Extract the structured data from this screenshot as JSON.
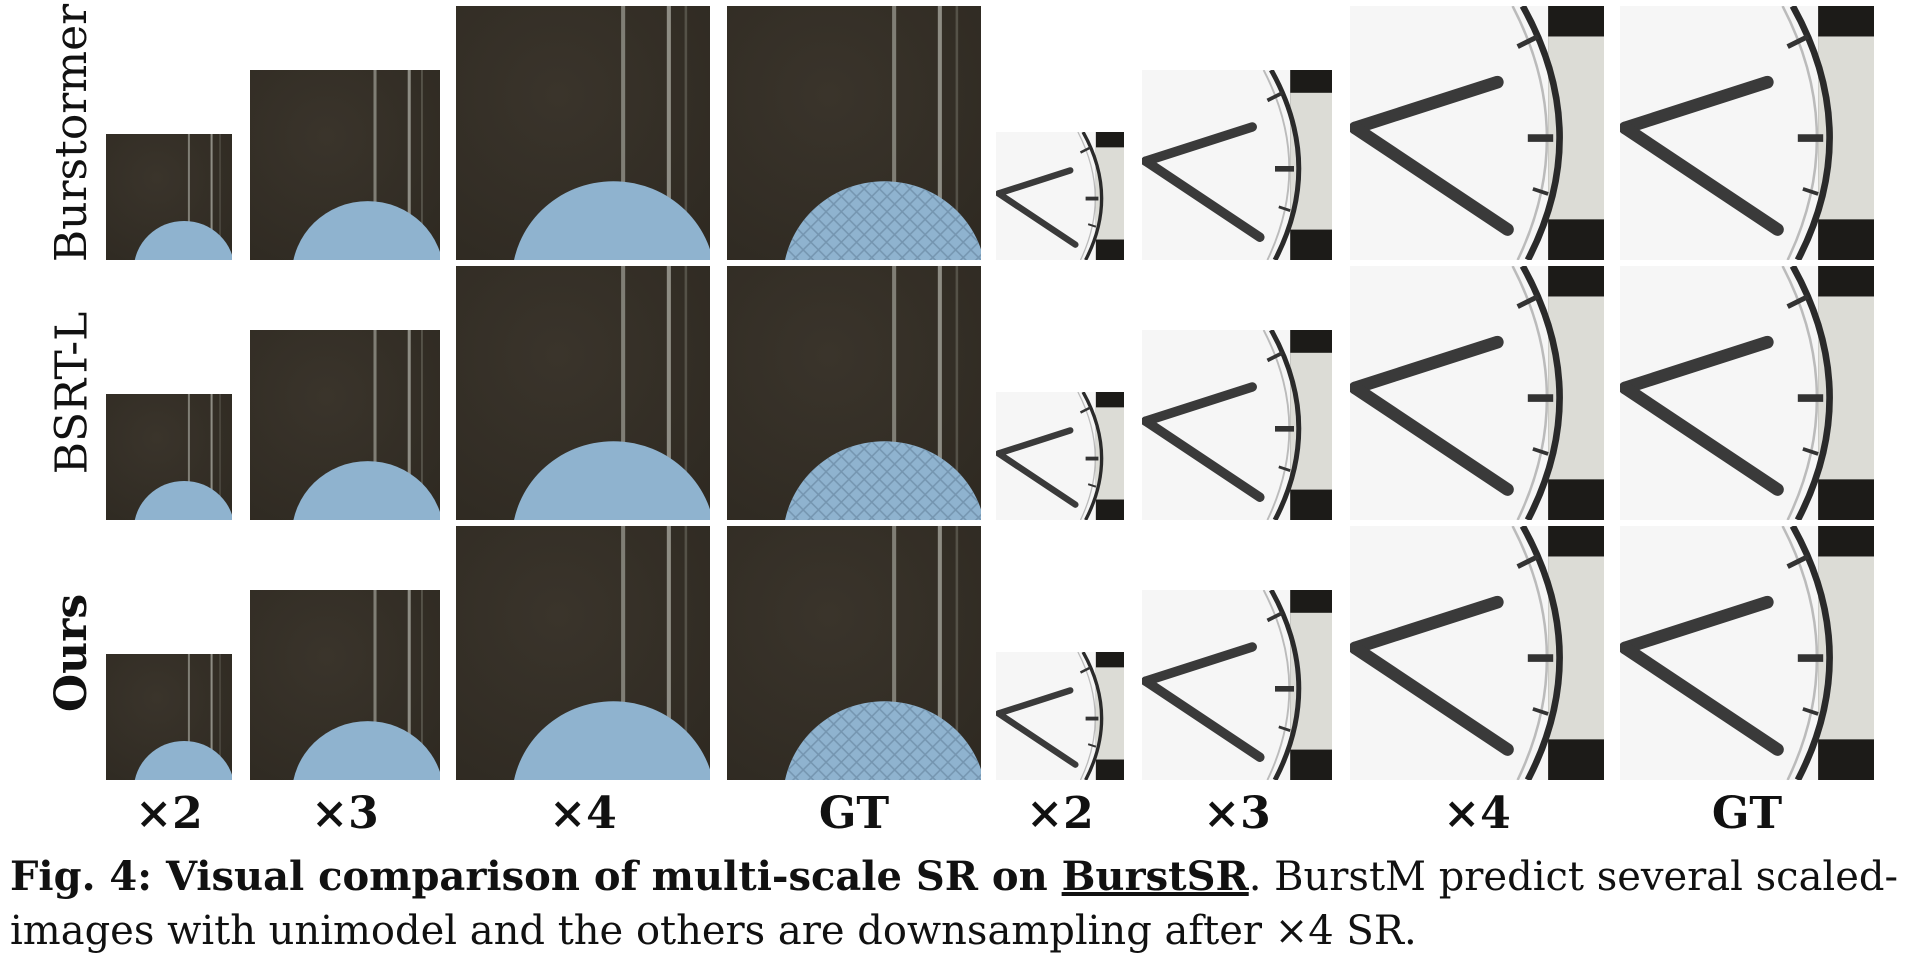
{
  "rows": [
    {
      "label": "Burstormer",
      "bold": false
    },
    {
      "label": "BSRT-L",
      "bold": false
    },
    {
      "label": "Ours",
      "bold": true
    }
  ],
  "columns": [
    "×2",
    "×3",
    "×4",
    "GT",
    "×2",
    "×3",
    "×4",
    "GT"
  ],
  "caption": {
    "lead": "Fig. 4: Visual comparison of multi-scale SR on ",
    "dataset": "BurstSR",
    "rest": ". BurstM predict several scaled-images with unimodel and the others are downsampling after ×4 SR."
  },
  "colors": {
    "tile_dark": "#2f2a22",
    "sphere_blue": "#8fb3cf",
    "clock_face": "#f2f2f2",
    "clock_hand": "#3a3a3a"
  }
}
